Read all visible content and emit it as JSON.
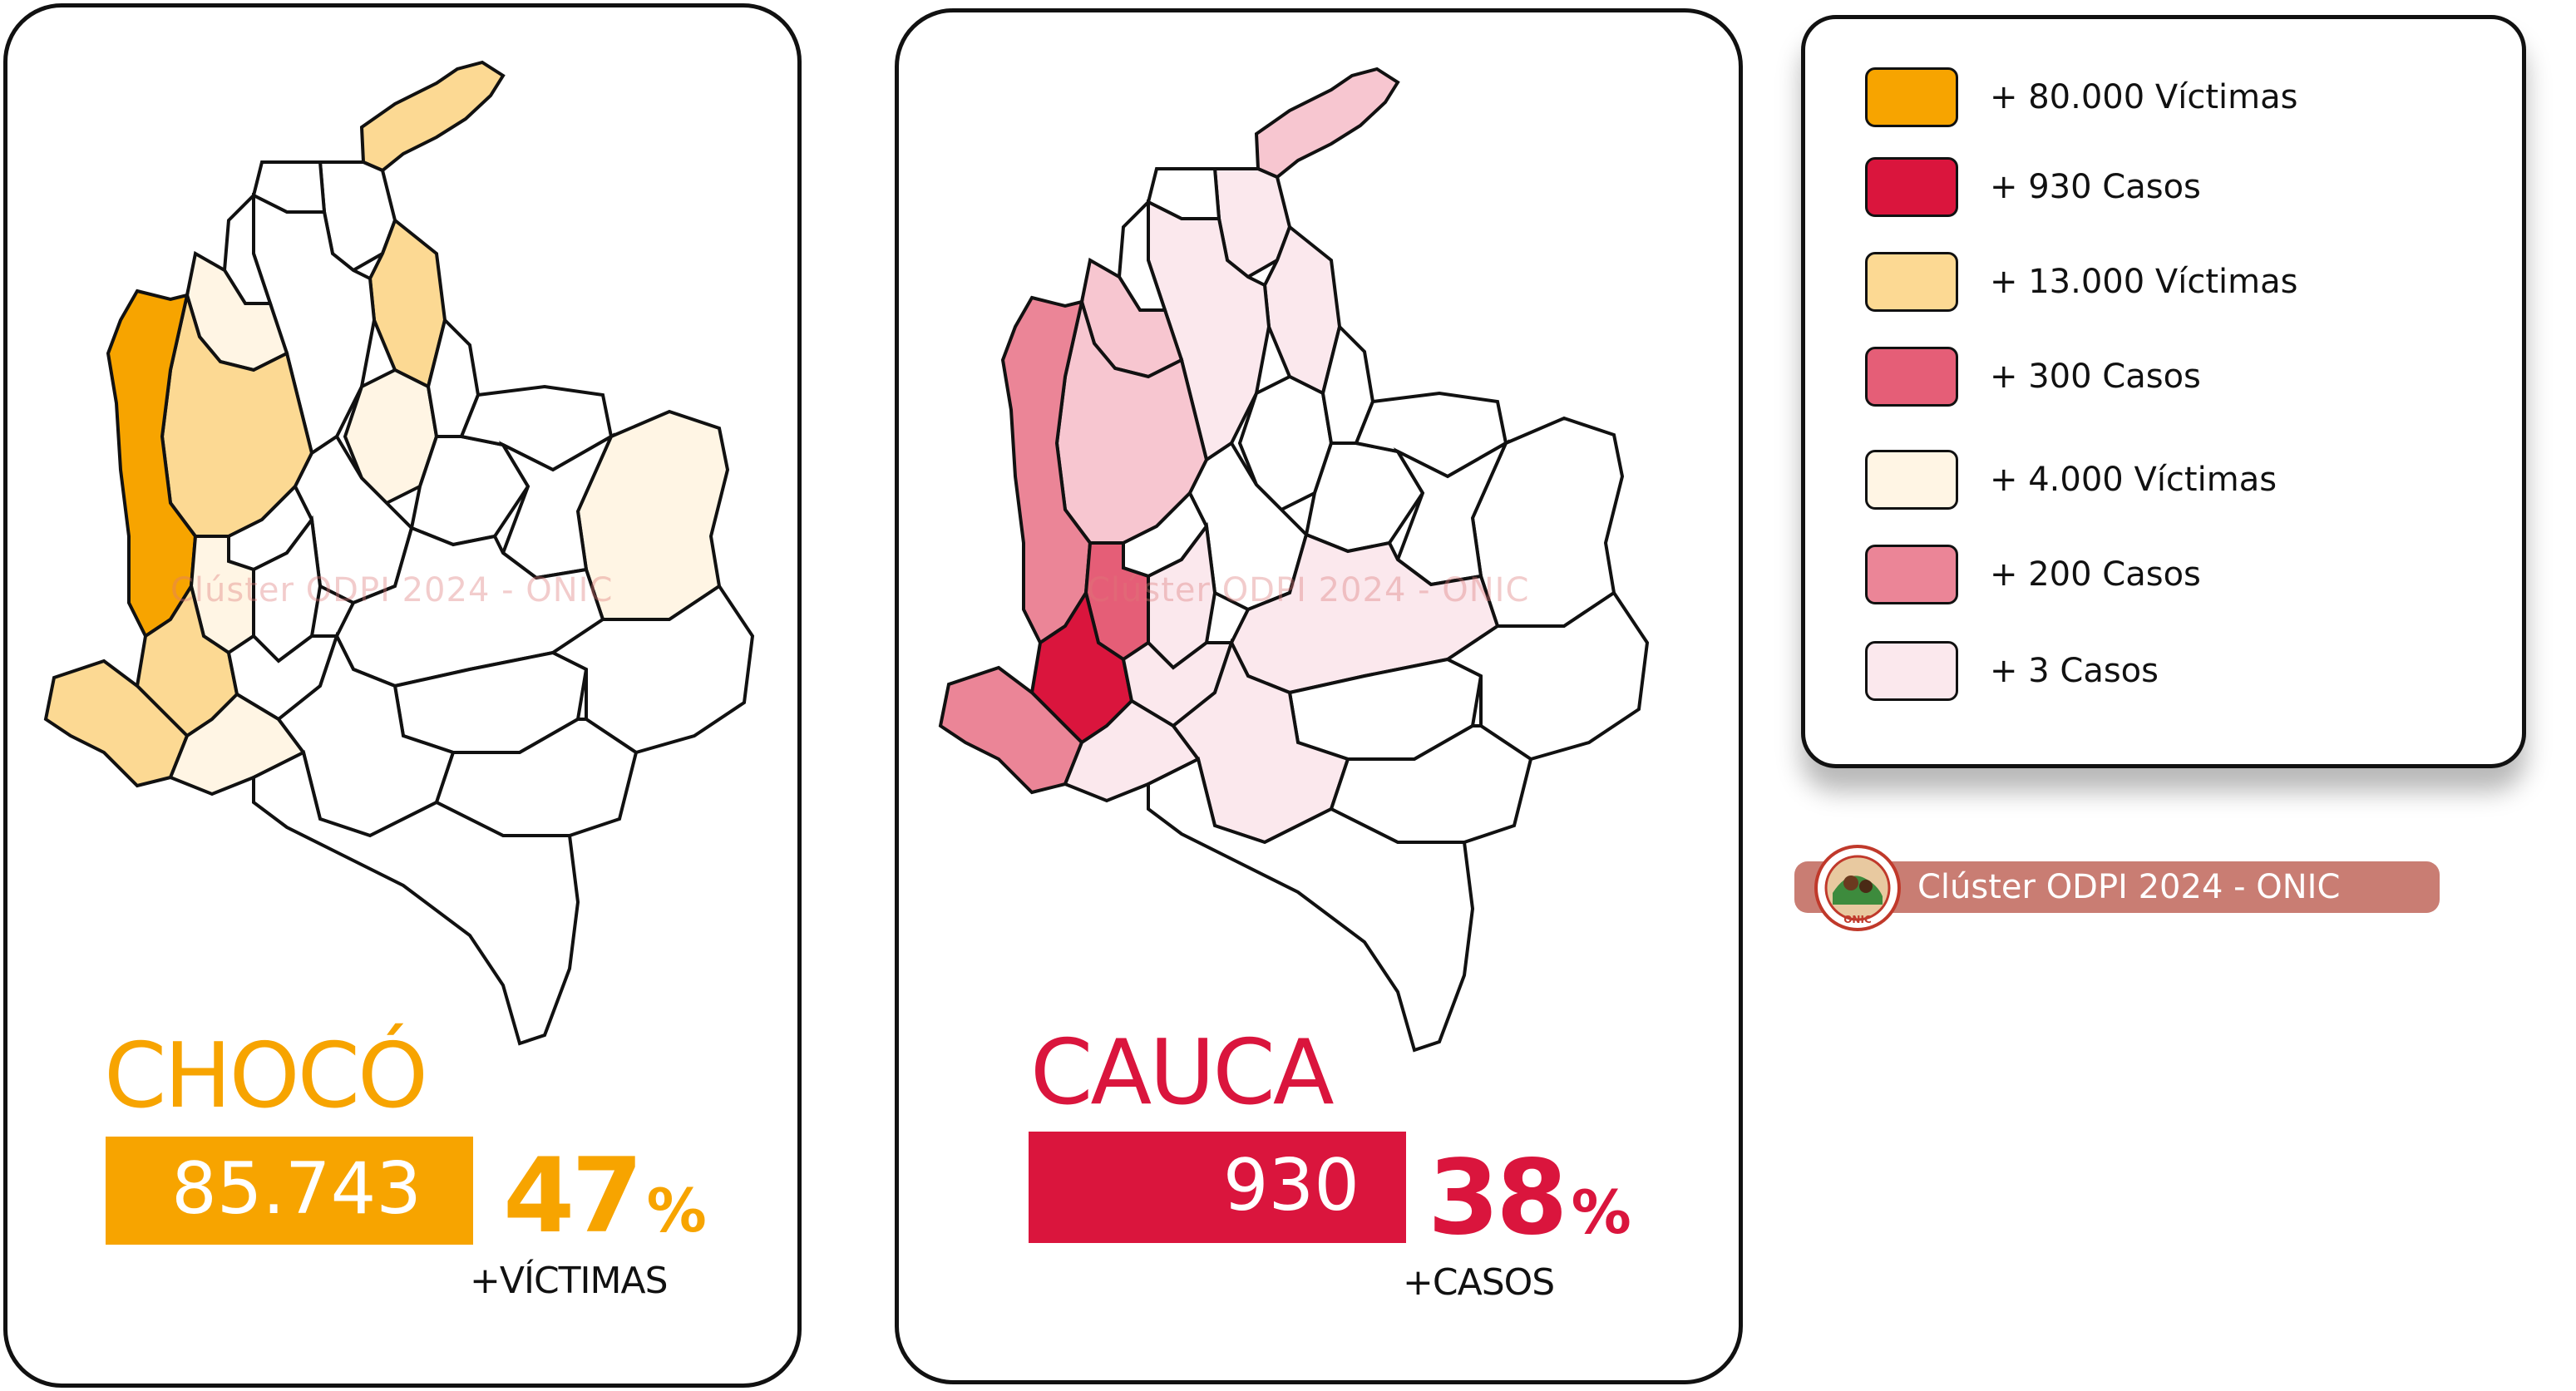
{
  "watermark": "Clúster ODPI 2024 - ONIC",
  "panels": [
    {
      "department": "CHOCÓ",
      "value": "85.743",
      "percent": "47",
      "percent_sign": "%",
      "caption": "+VÍCTIMAS",
      "accent": "#f7a400"
    },
    {
      "department": "CAUCA",
      "value": "930",
      "percent": "38",
      "percent_sign": "%",
      "caption": "+CASOS",
      "accent": "#da153d"
    }
  ],
  "legend": {
    "items": [
      {
        "label": "+ 80.000 Víctimas",
        "color": "#f7a400"
      },
      {
        "label": "+ 930 Casos",
        "color": "#da153d"
      },
      {
        "label": "+ 13.000 Víctimas",
        "color": "#fcd993"
      },
      {
        "label": "+ 300 Casos",
        "color": "#e55e77"
      },
      {
        "label": "+ 4.000 Víctimas",
        "color": "#fff5e4"
      },
      {
        "label": "+ 200 Casos",
        "color": "#eb8597"
      },
      {
        "label": "+ 3 Casos",
        "color": "#fbe8ed"
      }
    ]
  },
  "credit": {
    "text": "Clúster ODPI 2024 - ONIC",
    "logo_icon": "onic-seal-icon",
    "logo_text": "ONIC"
  },
  "map_fills": {
    "choco": {
      "choco": "#f7a400",
      "narino": "#fcd993",
      "cauca": "#fcd993",
      "antioquia": "#fcd993",
      "guajira": "#fcd993",
      "cesar": "#fcd993",
      "vichada": "#fff5e4",
      "cordoba": "#fff5e4",
      "putumayo": "#fff5e4",
      "valle": "#fff5e4",
      "santander": "#fff5e4"
    },
    "cauca": {
      "cauca": "#da153d",
      "choco": "#eb8597",
      "valle": "#e55e77",
      "narino": "#eb8597",
      "antioquia": "#f7c6d0",
      "cordoba": "#f7c6d0",
      "guajira": "#f7c6d0",
      "cesar": "#fbe8ed",
      "putumayo": "#fbe8ed",
      "caqueta": "#fbe8ed",
      "meta": "#fbe8ed",
      "huila": "#fbe8ed",
      "tolima": "#fbe8ed",
      "bolivar": "#fbe8ed",
      "magdalena": "#fbe8ed"
    }
  }
}
